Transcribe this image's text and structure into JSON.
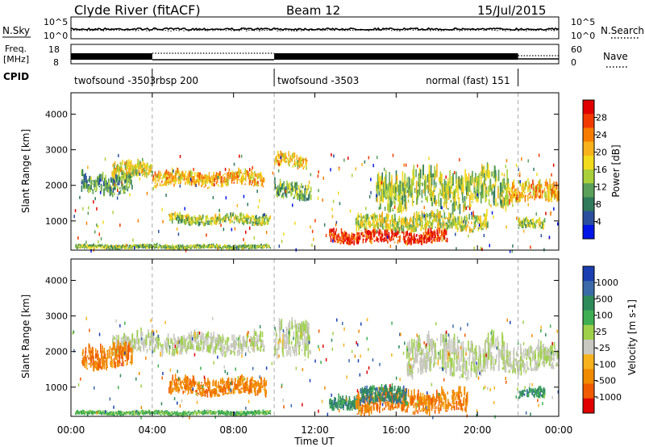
{
  "header": {
    "site": "Clyde River (fitACF)",
    "beam": "Beam 12",
    "date": "15/Jul/2015"
  },
  "noise_panel": {
    "left_label": "N.Sky",
    "right_label": "N.Search",
    "left_ticks": [
      "10^5",
      "10^0"
    ],
    "right_ticks": [
      "10^5",
      "10^0"
    ]
  },
  "freq_panel": {
    "left_label_line1": "Freq.",
    "left_label_line2": "[MHz]",
    "right_label": "Nave",
    "left_ticks": [
      "18",
      "8"
    ],
    "right_ticks": [
      "60",
      "0"
    ]
  },
  "cpid_panel": {
    "label": "CPID",
    "segments": [
      {
        "start_hour": 0.0,
        "label": "twofsound -3503"
      },
      {
        "start_hour": 4.0,
        "label": "rbsp 200"
      },
      {
        "start_hour": 10.0,
        "label": "twofsound -3503"
      },
      {
        "start_hour": 17.3,
        "label": "normal (fast) 151"
      }
    ],
    "divider_hours": [
      4.0,
      10.0,
      22.0
    ]
  },
  "x_axis": {
    "label": "Time UT",
    "range_hours": [
      0,
      24
    ],
    "tick_labels": [
      "00:00",
      "04:00",
      "08:00",
      "12:00",
      "16:00",
      "20:00",
      "00:00"
    ]
  },
  "chart_data": [
    {
      "type": "heatmap",
      "name": "Power",
      "ylabel": "Slant Range [km]",
      "xlabel": "Time UT",
      "ylim": [
        180,
        4600
      ],
      "y_ticks": [
        1000,
        2000,
        3000,
        4000
      ],
      "colorbar": {
        "label": "Power [dB]",
        "ticks": [
          "28",
          "24",
          "20",
          "16",
          "12",
          "8",
          "4"
        ],
        "colors": [
          "#e00000",
          "#f23a00",
          "#f77d00",
          "#f7b21c",
          "#f2da1c",
          "#a9cf3a",
          "#5aa05a",
          "#2f7a5a",
          "#2b4f9c",
          "#0015e6"
        ]
      },
      "echo_regions": [
        {
          "t0": 0.2,
          "t1": 9.8,
          "r0": 200,
          "r1": 320,
          "level": 0.4
        },
        {
          "t0": 0.5,
          "t1": 3.0,
          "r0": 1750,
          "r1": 2350,
          "level": 0.3
        },
        {
          "t0": 2.0,
          "t1": 4.0,
          "r0": 2200,
          "r1": 2650,
          "level": 0.55
        },
        {
          "t0": 4.0,
          "t1": 9.5,
          "r0": 1950,
          "r1": 2400,
          "level": 0.65
        },
        {
          "t0": 4.8,
          "t1": 9.8,
          "r0": 880,
          "r1": 1180,
          "level": 0.45
        },
        {
          "t0": 10.0,
          "t1": 11.6,
          "r0": 2450,
          "r1": 2850,
          "level": 0.6
        },
        {
          "t0": 10.0,
          "t1": 11.8,
          "r0": 1600,
          "r1": 2100,
          "level": 0.35
        },
        {
          "t0": 12.7,
          "t1": 18.5,
          "r0": 350,
          "r1": 750,
          "level": 0.95
        },
        {
          "t0": 14.0,
          "t1": 20.5,
          "r0": 700,
          "r1": 1200,
          "level": 0.5
        },
        {
          "t0": 15.0,
          "t1": 21.5,
          "r0": 1300,
          "r1": 2400,
          "level": 0.45
        },
        {
          "t0": 21.5,
          "t1": 24.0,
          "r0": 1500,
          "r1": 2100,
          "level": 0.65
        },
        {
          "t0": 22.0,
          "t1": 23.3,
          "r0": 750,
          "r1": 1050,
          "level": 0.45
        }
      ]
    },
    {
      "type": "heatmap",
      "name": "Velocity",
      "ylabel": "Slant Range [km]",
      "xlabel": "Time UT",
      "ylim": [
        180,
        4600
      ],
      "y_ticks": [
        1000,
        2000,
        3000,
        4000
      ],
      "colorbar": {
        "label": "Velocity [m s-1]",
        "ticks": [
          "1000",
          "500",
          "100",
          "25",
          "-25",
          "-100",
          "-500",
          "-1000"
        ],
        "colors": [
          "#1a3fb0",
          "#3a6aa8",
          "#2f8a5a",
          "#3fae52",
          "#9fd04a",
          "#c8c8c0",
          "#f7b21c",
          "#f08a00",
          "#f05a00",
          "#e00000"
        ]
      },
      "echo_regions": [
        {
          "t0": 0.2,
          "t1": 9.8,
          "r0": 200,
          "r1": 320,
          "vel": 0.3
        },
        {
          "t0": 2.0,
          "t1": 9.5,
          "r0": 1900,
          "r1": 2500,
          "vel": -0.05
        },
        {
          "t0": 0.5,
          "t1": 3.0,
          "r0": 1500,
          "r1": 2200,
          "vel": -0.6
        },
        {
          "t0": 4.8,
          "t1": 9.6,
          "r0": 750,
          "r1": 1250,
          "vel": -0.6
        },
        {
          "t0": 10.0,
          "t1": 11.8,
          "r0": 1700,
          "r1": 2800,
          "vel": -0.05
        },
        {
          "t0": 12.7,
          "t1": 14.2,
          "r0": 300,
          "r1": 700,
          "vel": 0.55
        },
        {
          "t0": 14.0,
          "t1": 19.5,
          "r0": 250,
          "r1": 900,
          "vel": -0.6
        },
        {
          "t0": 14.2,
          "t1": 16.5,
          "r0": 500,
          "r1": 1000,
          "vel": 0.6
        },
        {
          "t0": 16.5,
          "t1": 21.5,
          "r0": 1300,
          "r1": 2400,
          "vel": -0.05
        },
        {
          "t0": 21.5,
          "t1": 24.0,
          "r0": 1400,
          "r1": 2200,
          "vel": -0.05
        },
        {
          "t0": 22.0,
          "t1": 23.3,
          "r0": 650,
          "r1": 950,
          "vel": 0.55
        }
      ]
    }
  ],
  "legend_marks": {
    "n_search_style": "dotted",
    "nave_style": "dotted"
  }
}
